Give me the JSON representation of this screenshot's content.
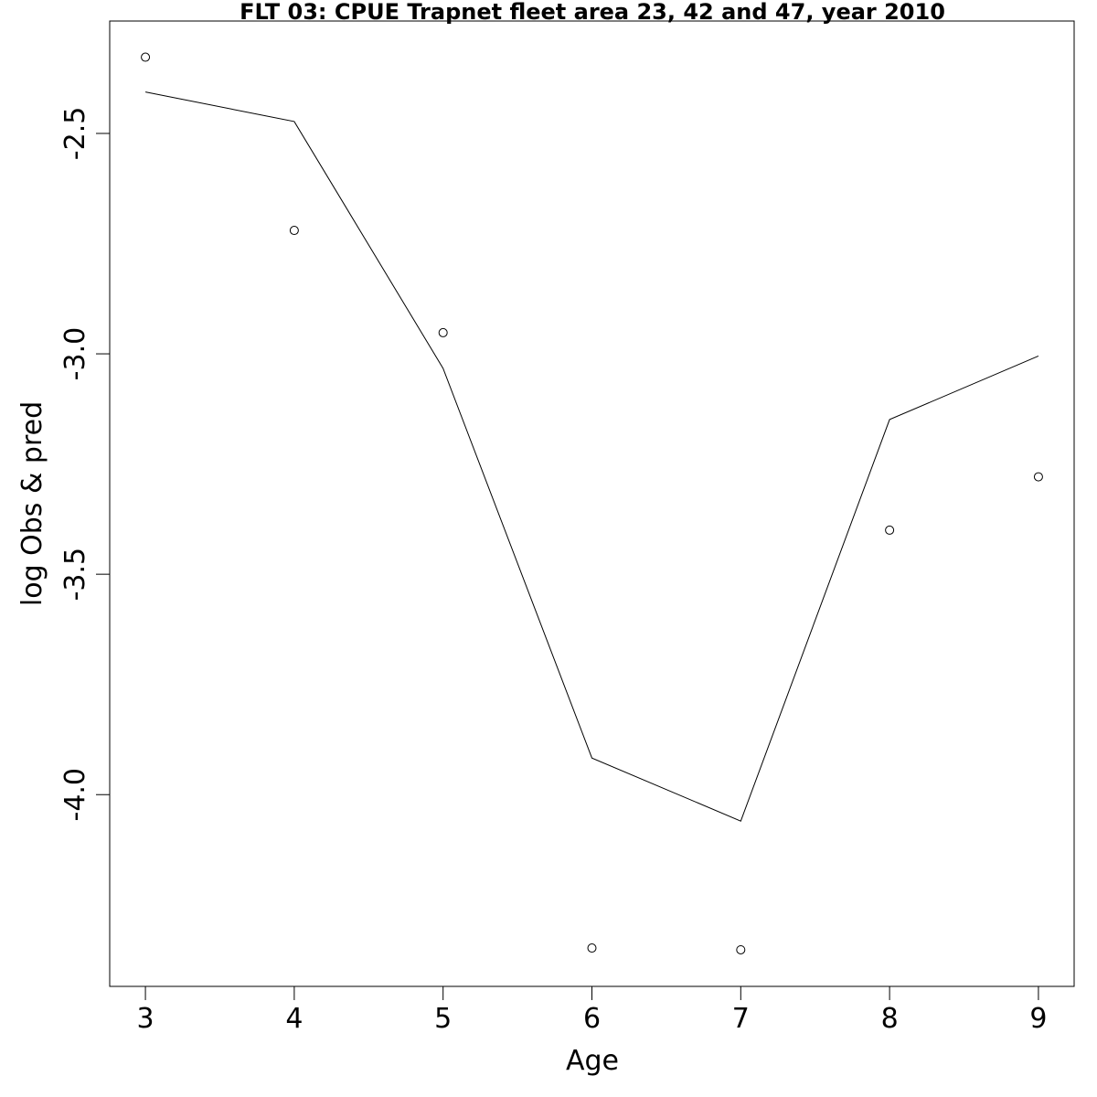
{
  "chart_data": {
    "type": "line",
    "title": "FLT 03: CPUE Trapnet fleet area 23, 42 and 47, year 2010",
    "xlabel": "Age",
    "ylabel": "log Obs & pred",
    "x": [
      3,
      4,
      5,
      6,
      7,
      8,
      9
    ],
    "x_ticks": [
      "3",
      "4",
      "5",
      "6",
      "7",
      "8",
      "9"
    ],
    "y_ticks": [
      "-2.5",
      "-3.0",
      "-3.5",
      "-4.0"
    ],
    "xlim": [
      2.76,
      9.24
    ],
    "ylim": [
      -4.435,
      -2.245
    ],
    "grid": false,
    "series": [
      {
        "kind": "points",
        "marker": "open-circle",
        "color": "#000000",
        "values": [
          -2.327,
          -2.72,
          -2.952,
          -4.348,
          -4.352,
          -3.4,
          -3.279
        ]
      },
      {
        "kind": "line",
        "color": "#000000",
        "values": [
          -2.406,
          -2.473,
          -3.033,
          -3.917,
          -4.06,
          -3.149,
          -3.005
        ]
      }
    ]
  }
}
